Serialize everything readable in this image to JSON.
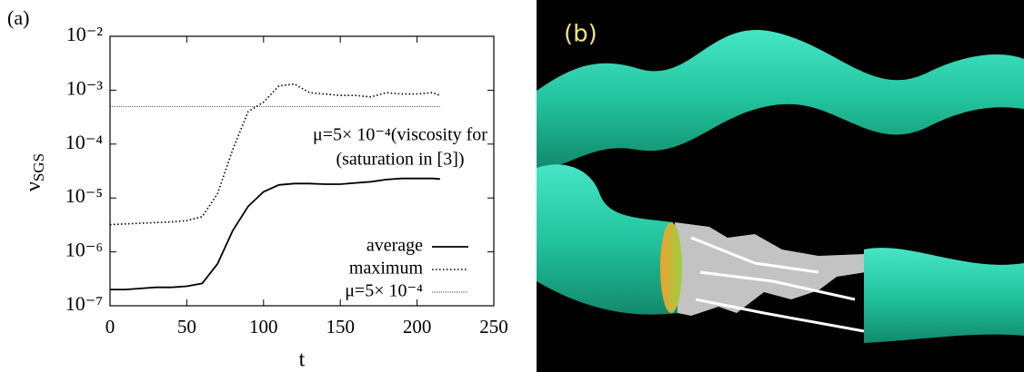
{
  "panel_b": {
    "label": "(b)"
  },
  "chart_data": {
    "type": "line",
    "panel_label": "(a)",
    "x_label": "t",
    "y_label": "νSGS",
    "yscale": "log",
    "legend": "lower right",
    "annotations": [
      "μ=5× 10⁻⁴(viscosity for",
      "(saturation in [3])"
    ],
    "xlim": [
      0,
      250
    ],
    "xticks": [
      0,
      50,
      100,
      150,
      200,
      250
    ],
    "ylim": [
      1e-07,
      0.01
    ],
    "yticks": [
      {
        "value": 1e-07,
        "label": "10⁻⁷"
      },
      {
        "value": 1e-06,
        "label": "10⁻⁶"
      },
      {
        "value": 1e-05,
        "label": "10⁻⁵"
      },
      {
        "value": 0.0001,
        "label": "10⁻⁴"
      },
      {
        "value": 0.001,
        "label": "10⁻³"
      },
      {
        "value": 0.01,
        "label": "10⁻²"
      }
    ],
    "x": [
      0,
      10,
      20,
      30,
      40,
      50,
      60,
      70,
      80,
      90,
      100,
      110,
      120,
      130,
      140,
      150,
      160,
      170,
      180,
      190,
      200,
      210,
      215
    ],
    "series": [
      {
        "name": "average",
        "color": "#000000",
        "line_style": "solid",
        "values": [
          2e-07,
          2e-07,
          2.1e-07,
          2.2e-07,
          2.2e-07,
          2.3e-07,
          2.6e-07,
          6e-07,
          2.5e-06,
          7e-06,
          1.3e-05,
          1.75e-05,
          1.85e-05,
          1.85e-05,
          1.8e-05,
          1.8e-05,
          1.9e-05,
          2e-05,
          2.2e-05,
          2.3e-05,
          2.3e-05,
          2.3e-05,
          2.25e-05
        ]
      },
      {
        "name": "maximum",
        "color": "#000000",
        "line_style": "dotted",
        "values": [
          3.2e-06,
          3.3e-06,
          3.4e-06,
          3.5e-06,
          3.6e-06,
          3.8e-06,
          4.5e-06,
          1.2e-05,
          8e-05,
          0.0004,
          0.0006,
          0.0012,
          0.0013,
          0.0009,
          0.00085,
          0.0008,
          0.0008,
          0.00075,
          0.0009,
          0.00085,
          0.00085,
          0.0009,
          0.0008
        ]
      },
      {
        "name": "μ=5× 10⁻⁴",
        "color": "#000000",
        "line_style": "thin",
        "values": [
          0.0005,
          0.0005,
          0.0005,
          0.0005,
          0.0005,
          0.0005,
          0.0005,
          0.0005,
          0.0005,
          0.0005,
          0.0005,
          0.0005,
          0.0005,
          0.0005,
          0.0005,
          0.0005,
          0.0005,
          0.0005,
          0.0005,
          0.0005,
          0.0005,
          0.0005,
          0.0005
        ]
      }
    ]
  }
}
